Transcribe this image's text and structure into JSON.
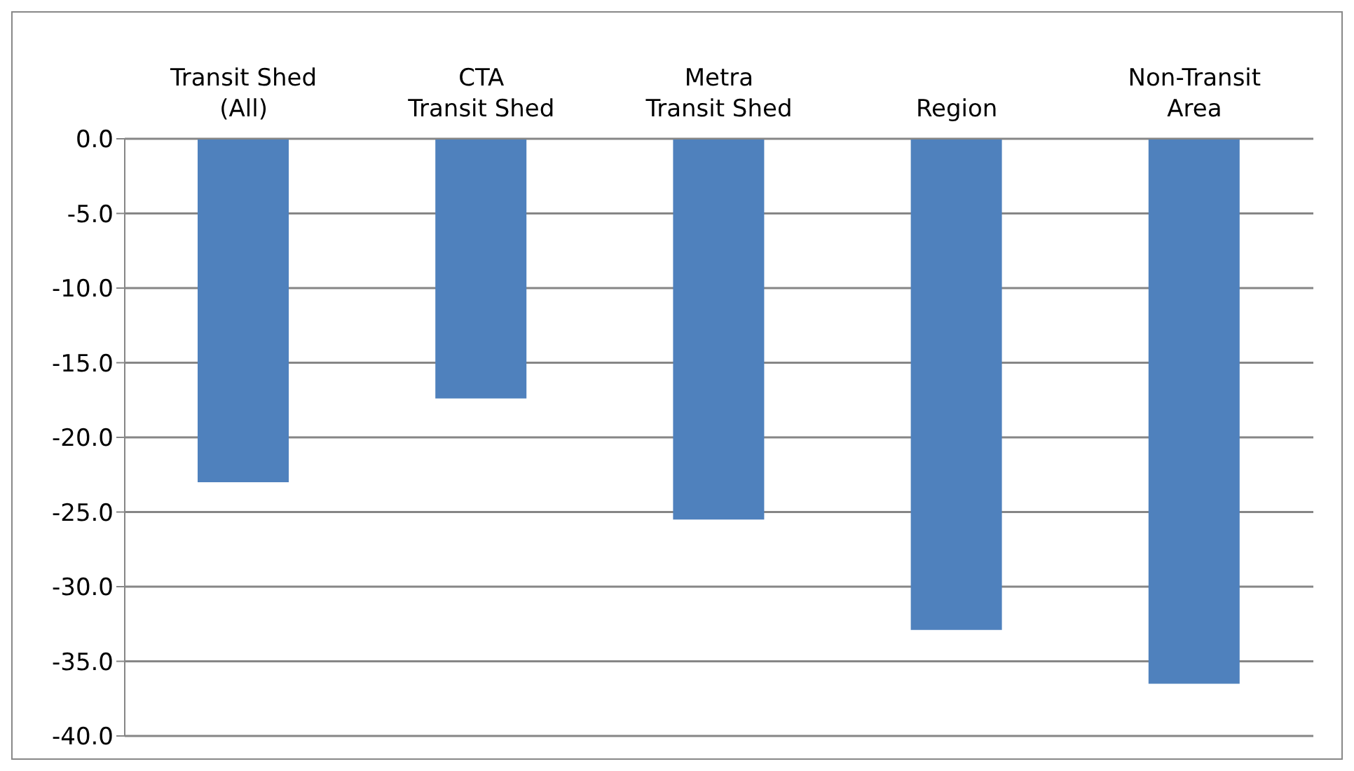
{
  "chart_data": {
    "type": "bar",
    "categories": [
      "Transit Shed\n(All)",
      "CTA\nTransit Shed",
      "Metra\nTransit Shed",
      "Region",
      "Non-Transit\nArea"
    ],
    "values": [
      -23.0,
      -17.4,
      -25.5,
      -32.9,
      -36.5
    ],
    "color": "#4f81bd",
    "ylim": [
      -40,
      0
    ],
    "yticks": [
      {
        "value": 0,
        "label": "0.0"
      },
      {
        "value": -5,
        "label": "-5.0"
      },
      {
        "value": -10,
        "label": "-10.0"
      },
      {
        "value": -15,
        "label": "-15.0"
      },
      {
        "value": -20,
        "label": "-20.0"
      },
      {
        "value": -25,
        "label": "-25.0"
      },
      {
        "value": -30,
        "label": "-30.0"
      },
      {
        "value": -35,
        "label": "-35.0"
      },
      {
        "value": -40,
        "label": "-40.0"
      }
    ],
    "grid": "y"
  }
}
